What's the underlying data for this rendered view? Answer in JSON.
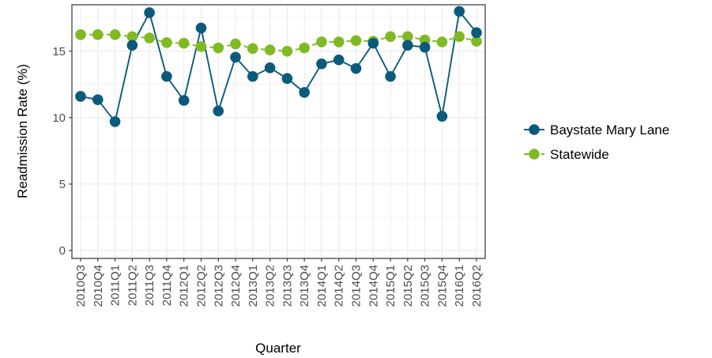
{
  "chart_data": {
    "type": "line",
    "xlabel": "Quarter",
    "ylabel": "Readmission Rate (%)",
    "ylim": [
      -0.6,
      18.5
    ],
    "yticks": [
      0,
      5,
      10,
      15
    ],
    "grid": true,
    "legend_position": "right",
    "categories": [
      "2010Q3",
      "2010Q4",
      "2011Q1",
      "2011Q2",
      "2011Q3",
      "2011Q4",
      "2012Q1",
      "2012Q2",
      "2012Q3",
      "2012Q4",
      "2013Q1",
      "2013Q2",
      "2013Q3",
      "2013Q4",
      "2014Q1",
      "2014Q2",
      "2014Q3",
      "2014Q4",
      "2015Q1",
      "2015Q2",
      "2015Q3",
      "2015Q4",
      "2016Q1",
      "2016Q2"
    ],
    "series": [
      {
        "name": "Baystate Mary Lane",
        "color": "#0b5a7c",
        "dash": false,
        "values": [
          11.6,
          11.35,
          9.7,
          15.45,
          17.9,
          13.1,
          11.3,
          16.75,
          10.5,
          14.55,
          13.1,
          13.75,
          12.95,
          11.9,
          14.05,
          14.35,
          13.7,
          15.6,
          13.1,
          15.45,
          15.3,
          10.1,
          18.0,
          16.4
        ]
      },
      {
        "name": "Statewide",
        "color": "#7fba23",
        "dash": true,
        "values": [
          16.25,
          16.25,
          16.25,
          16.1,
          16.0,
          15.65,
          15.6,
          15.35,
          15.25,
          15.55,
          15.2,
          15.1,
          15.0,
          15.25,
          15.7,
          15.7,
          15.8,
          15.75,
          16.1,
          16.1,
          15.85,
          15.7,
          16.1,
          15.75
        ]
      }
    ]
  }
}
